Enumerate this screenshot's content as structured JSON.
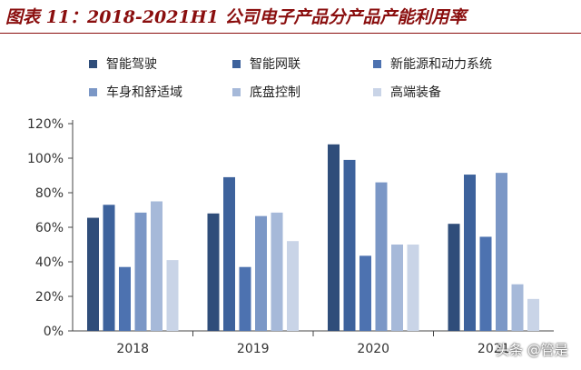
{
  "title": "图表 11：2018-2021H1 公司电子产品分产品产能利用率",
  "watermark": "头条 @管是",
  "chart_data": {
    "type": "bar",
    "categories": [
      "2018",
      "2019",
      "2020",
      "2021H1"
    ],
    "category_labels_shown": [
      "2018",
      "2019",
      "2020",
      "2021"
    ],
    "ylim": [
      0,
      120
    ],
    "yticks": [
      "0%",
      "20%",
      "40%",
      "60%",
      "80%",
      "100%",
      "120%"
    ],
    "ytick_values": [
      0,
      20,
      40,
      60,
      80,
      100,
      120
    ],
    "legend_position": "top",
    "grid": false,
    "series": [
      {
        "name": "智能驾驶",
        "color": "#2f4d7a",
        "values": [
          65.5,
          68,
          108,
          62
        ]
      },
      {
        "name": "智能网联",
        "color": "#3d629c",
        "values": [
          73,
          89,
          99,
          90.5
        ]
      },
      {
        "name": "新能源和动力系统",
        "color": "#4d72b0",
        "values": [
          37,
          37,
          43.5,
          54.5
        ]
      },
      {
        "name": "车身和舒适域",
        "color": "#7b97c6",
        "values": [
          68.5,
          66.5,
          86,
          91.5
        ]
      },
      {
        "name": "底盘控制",
        "color": "#a6b9d9",
        "values": [
          75,
          68.5,
          50,
          27
        ]
      },
      {
        "name": "高端装备",
        "color": "#c9d4e7",
        "values": [
          41,
          52,
          50,
          18.5
        ]
      }
    ]
  }
}
